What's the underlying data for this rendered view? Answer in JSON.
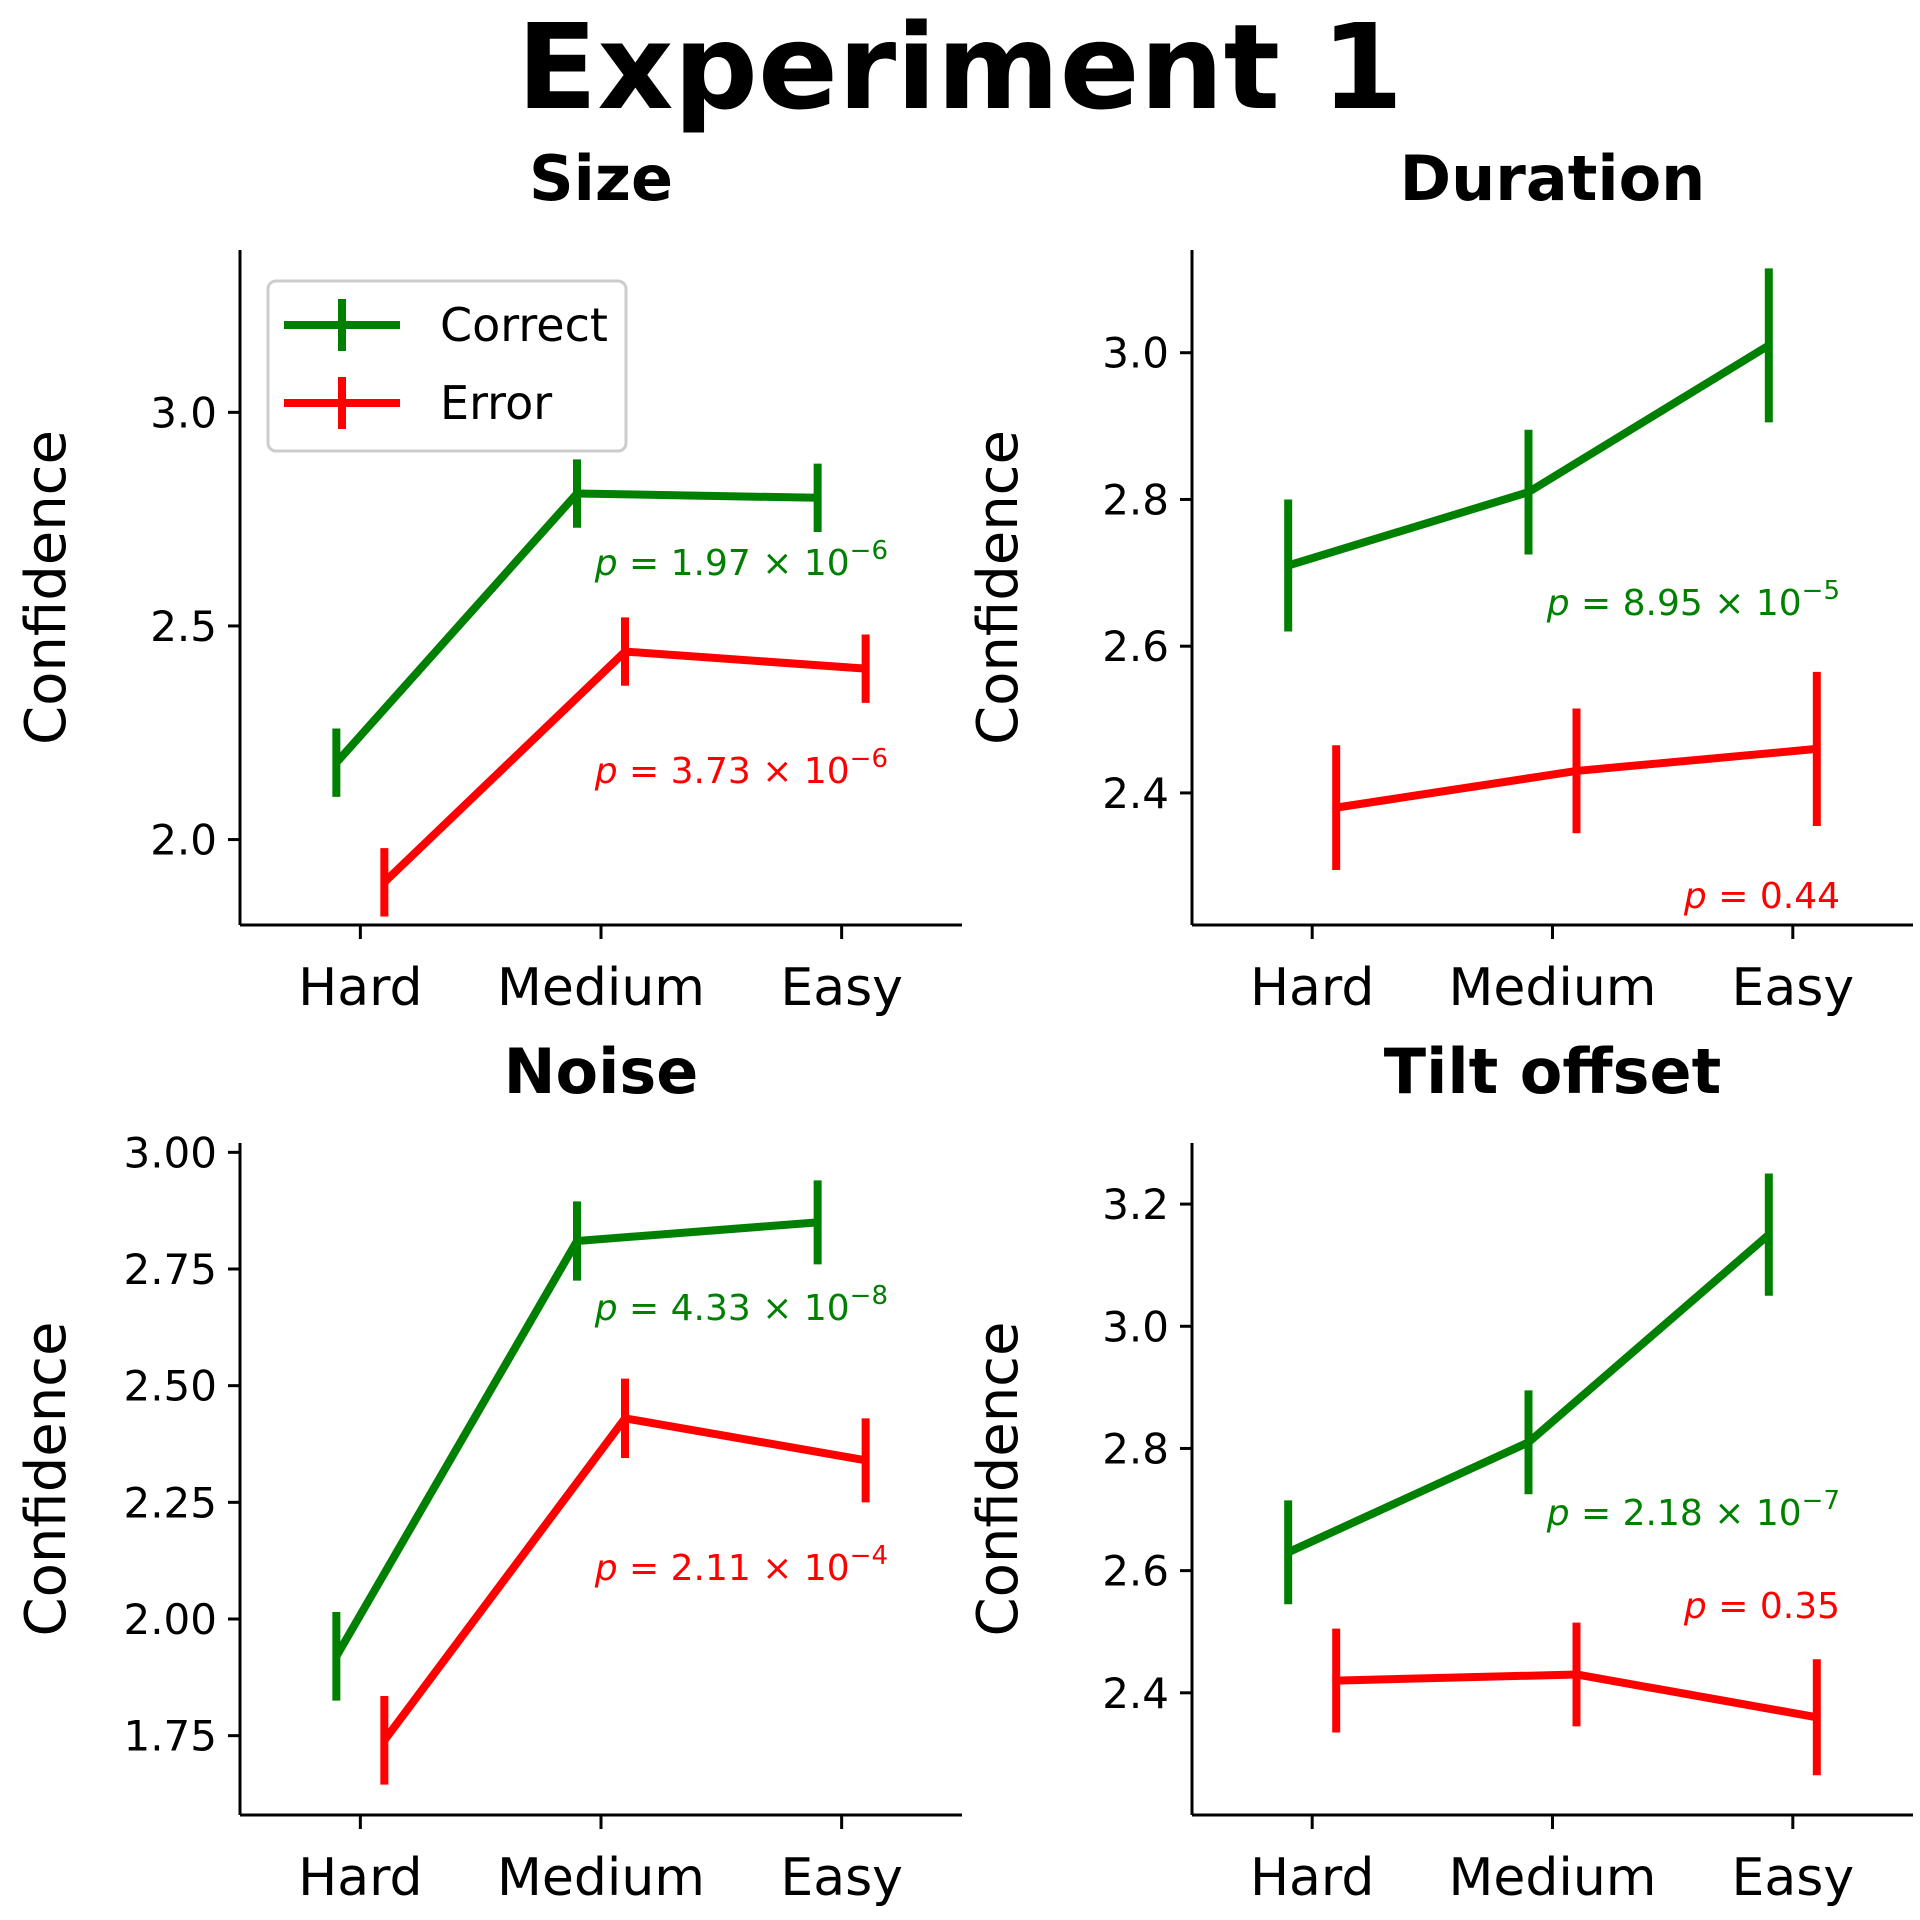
{
  "figure_title": "Experiment 1",
  "colors": {
    "Correct": "#008000",
    "Error": "#ff0000"
  },
  "legend": {
    "location": "upper-left of first panel",
    "entries": [
      "Correct",
      "Error"
    ]
  },
  "chart_data": [
    {
      "type": "line",
      "title": "Size",
      "xlabel": "",
      "ylabel": "Confidence",
      "categories": [
        "Hard",
        "Medium",
        "Easy"
      ],
      "ylim": [
        1.8,
        3.38
      ],
      "yticks": [
        2.0,
        2.5,
        3.0
      ],
      "ytick_labels": [
        "2.0",
        "2.5",
        "3.0"
      ],
      "legend": true,
      "series": [
        {
          "name": "Correct",
          "color": "#008000",
          "values": [
            2.18,
            2.81,
            2.8
          ],
          "errors": [
            0.08,
            0.08,
            0.08
          ]
        },
        {
          "name": "Error",
          "color": "#ff0000",
          "values": [
            1.9,
            2.44,
            2.4
          ],
          "errors": [
            0.08,
            0.08,
            0.08
          ]
        }
      ],
      "annotations": [
        {
          "series": "Correct",
          "base": "1.97",
          "exp": "−6"
        },
        {
          "series": "Error",
          "base": "3.73",
          "exp": "−6"
        }
      ]
    },
    {
      "type": "line",
      "title": "Duration",
      "xlabel": "",
      "ylabel": "Confidence",
      "categories": [
        "Hard",
        "Medium",
        "Easy"
      ],
      "ylim": [
        2.22,
        3.14
      ],
      "yticks": [
        2.4,
        2.6,
        2.8,
        3.0
      ],
      "ytick_labels": [
        "2.4",
        "2.6",
        "2.8",
        "3.0"
      ],
      "legend": false,
      "series": [
        {
          "name": "Correct",
          "color": "#008000",
          "values": [
            2.71,
            2.81,
            3.01
          ],
          "errors": [
            0.09,
            0.085,
            0.105
          ]
        },
        {
          "name": "Error",
          "color": "#ff0000",
          "values": [
            2.38,
            2.43,
            2.46
          ],
          "errors": [
            0.085,
            0.085,
            0.105
          ]
        }
      ],
      "annotations": [
        {
          "series": "Correct",
          "base": "8.95",
          "exp": "−5"
        },
        {
          "series": "Error",
          "text": "0.44"
        }
      ]
    },
    {
      "type": "line",
      "title": "Noise",
      "xlabel": "",
      "ylabel": "Confidence",
      "categories": [
        "Hard",
        "Medium",
        "Easy"
      ],
      "ylim": [
        1.58,
        3.02
      ],
      "yticks": [
        1.75,
        2.0,
        2.25,
        2.5,
        2.75,
        3.0
      ],
      "ytick_labels": [
        "1.75",
        "2.00",
        "2.25",
        "2.50",
        "2.75",
        "3.00"
      ],
      "legend": false,
      "series": [
        {
          "name": "Correct",
          "color": "#008000",
          "values": [
            1.92,
            2.81,
            2.85
          ],
          "errors": [
            0.095,
            0.085,
            0.09
          ]
        },
        {
          "name": "Error",
          "color": "#ff0000",
          "values": [
            1.74,
            2.43,
            2.34
          ],
          "errors": [
            0.095,
            0.085,
            0.09
          ]
        }
      ],
      "annotations": [
        {
          "series": "Correct",
          "base": "4.33",
          "exp": "−8"
        },
        {
          "series": "Error",
          "base": "2.11",
          "exp": "−4"
        }
      ]
    },
    {
      "type": "line",
      "title": "Tilt offset",
      "xlabel": "",
      "ylabel": "Confidence",
      "categories": [
        "Hard",
        "Medium",
        "Easy"
      ],
      "ylim": [
        2.2,
        3.3
      ],
      "yticks": [
        2.4,
        2.6,
        2.8,
        3.0,
        3.2
      ],
      "ytick_labels": [
        "2.4",
        "2.6",
        "2.8",
        "3.0",
        "3.2"
      ],
      "legend": false,
      "series": [
        {
          "name": "Correct",
          "color": "#008000",
          "values": [
            2.63,
            2.81,
            3.15
          ],
          "errors": [
            0.085,
            0.085,
            0.1
          ]
        },
        {
          "name": "Error",
          "color": "#ff0000",
          "values": [
            2.42,
            2.43,
            2.36
          ],
          "errors": [
            0.085,
            0.085,
            0.095
          ]
        }
      ],
      "annotations": [
        {
          "series": "Correct",
          "base": "2.18",
          "exp": "−7"
        },
        {
          "series": "Error",
          "text": "0.35"
        }
      ]
    }
  ]
}
